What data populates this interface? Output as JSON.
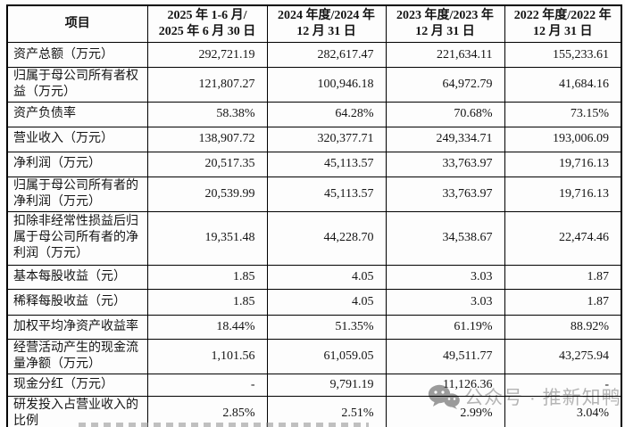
{
  "table": {
    "headers": {
      "item": "项目",
      "periods": [
        {
          "line1": "2025 年 1-6 月/",
          "line2": "2025 年 6 月 30 日"
        },
        {
          "line1": "2024 年度/2024 年",
          "line2": "12 月 31 日"
        },
        {
          "line1": "2023 年度/2023 年",
          "line2": "12 月 31 日"
        },
        {
          "line1": "2022 年度/2022 年",
          "line2": "12 月 31 日"
        }
      ]
    },
    "rows": [
      {
        "label": "资产总额（万元）",
        "values": [
          "292,721.19",
          "282,617.47",
          "221,634.11",
          "155,233.61"
        ]
      },
      {
        "label": "归属于母公司所有者权益（万元）",
        "values": [
          "121,807.27",
          "100,946.18",
          "64,972.79",
          "41,684.16"
        ]
      },
      {
        "label": "资产负债率",
        "values": [
          "58.38%",
          "64.28%",
          "70.68%",
          "73.15%"
        ]
      },
      {
        "label": "营业收入（万元）",
        "values": [
          "138,907.72",
          "320,377.71",
          "249,334.71",
          "193,006.09"
        ]
      },
      {
        "label": "净利润（万元）",
        "values": [
          "20,517.35",
          "45,113.57",
          "33,763.97",
          "19,716.13"
        ]
      },
      {
        "label": "归属于母公司所有者的净利润（万元）",
        "values": [
          "20,539.99",
          "45,113.57",
          "33,763.97",
          "19,716.13"
        ]
      },
      {
        "label": "扣除非经常性损益后归属于母公司所有者的净利润（万元）",
        "values": [
          "19,351.48",
          "44,228.70",
          "34,538.67",
          "22,474.46"
        ]
      },
      {
        "label": "基本每股收益（元）",
        "values": [
          "1.85",
          "4.05",
          "3.03",
          "1.87"
        ]
      },
      {
        "label": "稀释每股收益（元）",
        "values": [
          "1.85",
          "4.05",
          "3.03",
          "1.87"
        ]
      },
      {
        "label": "加权平均净资产收益率",
        "values": [
          "18.44%",
          "51.35%",
          "61.19%",
          "88.92%"
        ]
      },
      {
        "label": "经营活动产生的现金流量净额（万元）",
        "values": [
          "1,101.56",
          "61,059.05",
          "49,511.77",
          "43,275.94"
        ]
      },
      {
        "label": "现金分红（万元）",
        "values": [
          "-",
          "9,791.19",
          "11,126.36",
          "-"
        ]
      },
      {
        "label": "研发投入占营业收入的比例",
        "values": [
          "2.85%",
          "2.51%",
          "2.99%",
          "3.04%"
        ]
      }
    ]
  },
  "watermark": {
    "text": "公众号 · 推新知鸭",
    "icon_color": "#9b9b9b",
    "text_color": "#b4b4b4"
  }
}
